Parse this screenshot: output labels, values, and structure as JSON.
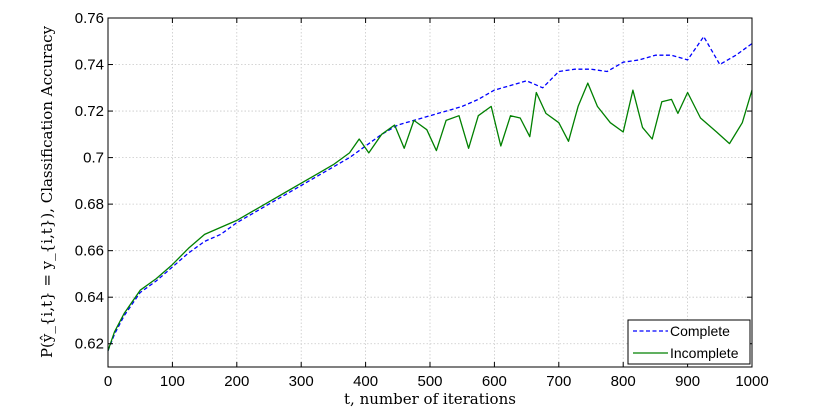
{
  "chart_data": {
    "type": "line",
    "xlabel": "t, number of iterations",
    "ylabel": "P(ŷ_{i,t} = y_{i,t}), Classification Accuracy",
    "xlim": [
      0,
      1000
    ],
    "ylim": [
      0.61,
      0.76
    ],
    "xticks": [
      0,
      100,
      200,
      300,
      400,
      500,
      600,
      700,
      800,
      900,
      1000
    ],
    "xtick_labels": [
      "0",
      "100",
      "200",
      "300",
      "400",
      "500",
      "600",
      "700",
      "800",
      "900",
      "1000"
    ],
    "yticks": [
      0.62,
      0.64,
      0.66,
      0.68,
      0.7,
      0.72,
      0.74,
      0.76
    ],
    "ytick_labels": [
      "0.62",
      "0.64",
      "0.66",
      "0.68",
      "0.7",
      "0.72",
      "0.74",
      "0.76"
    ],
    "grid": true,
    "legend_position": "bottom-right",
    "series": [
      {
        "name": "Complete",
        "color": "#0000ff",
        "style": "dashed",
        "x": [
          0,
          10,
          25,
          50,
          75,
          100,
          125,
          150,
          175,
          200,
          225,
          250,
          275,
          300,
          325,
          350,
          375,
          400,
          425,
          450,
          475,
          500,
          525,
          550,
          575,
          600,
          625,
          650,
          675,
          700,
          725,
          750,
          775,
          800,
          825,
          850,
          875,
          900,
          925,
          950,
          975,
          1000
        ],
        "y": [
          0.617,
          0.624,
          0.632,
          0.642,
          0.647,
          0.653,
          0.659,
          0.664,
          0.667,
          0.672,
          0.676,
          0.68,
          0.684,
          0.688,
          0.692,
          0.696,
          0.7,
          0.705,
          0.71,
          0.714,
          0.716,
          0.718,
          0.72,
          0.722,
          0.725,
          0.729,
          0.731,
          0.733,
          0.73,
          0.737,
          0.738,
          0.738,
          0.737,
          0.741,
          0.742,
          0.744,
          0.744,
          0.742,
          0.752,
          0.74,
          0.744,
          0.749
        ]
      },
      {
        "name": "Incomplete",
        "color": "#008000",
        "style": "solid",
        "x": [
          0,
          10,
          25,
          50,
          75,
          100,
          125,
          150,
          175,
          200,
          225,
          250,
          275,
          300,
          325,
          350,
          375,
          390,
          405,
          425,
          445,
          460,
          475,
          495,
          510,
          525,
          545,
          560,
          575,
          595,
          610,
          625,
          640,
          655,
          665,
          680,
          700,
          715,
          730,
          745,
          760,
          780,
          800,
          815,
          830,
          845,
          860,
          875,
          885,
          900,
          920,
          945,
          965,
          985,
          1000
        ],
        "y": [
          0.617,
          0.625,
          0.633,
          0.643,
          0.648,
          0.654,
          0.661,
          0.667,
          0.67,
          0.673,
          0.677,
          0.681,
          0.685,
          0.689,
          0.693,
          0.697,
          0.702,
          0.708,
          0.702,
          0.71,
          0.714,
          0.704,
          0.716,
          0.712,
          0.703,
          0.716,
          0.718,
          0.704,
          0.718,
          0.722,
          0.705,
          0.718,
          0.717,
          0.709,
          0.728,
          0.719,
          0.715,
          0.707,
          0.722,
          0.732,
          0.722,
          0.715,
          0.711,
          0.729,
          0.713,
          0.708,
          0.724,
          0.725,
          0.719,
          0.728,
          0.717,
          0.711,
          0.706,
          0.715,
          0.729
        ]
      }
    ]
  }
}
